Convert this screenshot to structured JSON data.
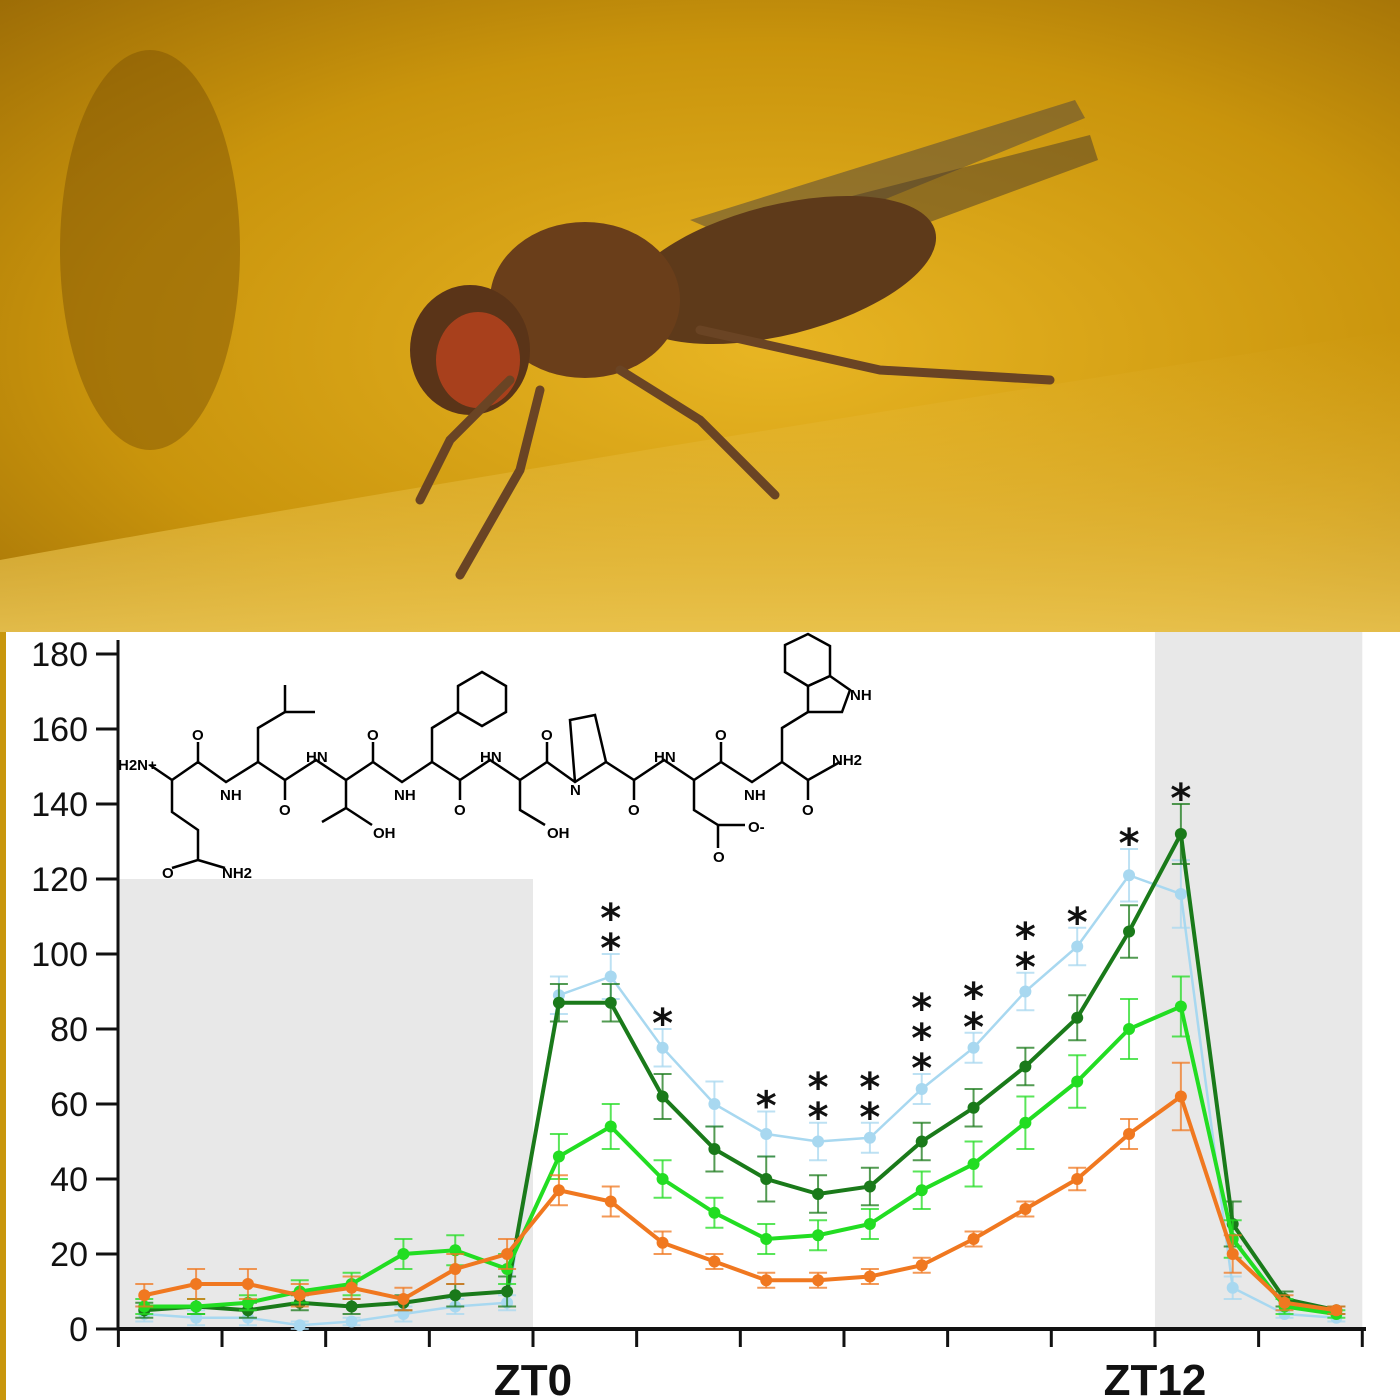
{
  "photo": {
    "subject": "fruit fly on surface",
    "background_color": "#c8960c"
  },
  "structure": {
    "atom_labels": [
      "H2N+",
      "O",
      "NH",
      "O",
      "HN",
      "O",
      "NH",
      "O",
      "HN",
      "O",
      "N",
      "O",
      "HN",
      "O",
      "NH",
      "NH2",
      "O",
      "OH",
      "OH",
      "O-",
      "O",
      "O",
      "NH2",
      "NH"
    ]
  },
  "chart_data": {
    "type": "line",
    "title": "",
    "xlabel": "",
    "ylabel": "",
    "x_unit": "hours relative to ZT0",
    "x": [
      -7.5,
      -6.5,
      -5.5,
      -4.5,
      -3.5,
      -2.5,
      -1.5,
      -0.5,
      0.5,
      1.5,
      2.5,
      3.5,
      4.5,
      5.5,
      6.5,
      7.5,
      8.5,
      9.5,
      10.5,
      11.5,
      12.5,
      13.5,
      14.5,
      15.5
    ],
    "xlim": [
      -8,
      16
    ],
    "ylim": [
      0,
      180
    ],
    "y_ticks": [
      "0",
      "20",
      "40",
      "60",
      "80",
      "100",
      "120",
      "140",
      "160",
      "180"
    ],
    "y_tick_values": [
      0,
      20,
      40,
      60,
      80,
      100,
      120,
      140,
      160,
      180
    ],
    "x_tick_values": [
      -8,
      -6,
      -4,
      -2,
      0,
      2,
      4,
      6,
      8,
      10,
      12,
      14,
      16
    ],
    "x_tick_labels": [
      {
        "at": 0,
        "text": "ZT0"
      },
      {
        "at": 12,
        "text": "ZT12"
      }
    ],
    "shaded_dark_periods": [
      [
        -8,
        0
      ],
      [
        12,
        16
      ]
    ],
    "grid": false,
    "legend": "none",
    "series": [
      {
        "color": "#a8d8f0",
        "values": [
          4,
          3,
          3,
          1,
          2,
          4,
          6,
          7,
          89,
          94,
          75,
          60,
          52,
          50,
          51,
          64,
          75,
          90,
          102,
          121,
          116,
          11,
          4,
          3
        ],
        "errors": [
          2,
          2,
          2,
          1,
          1,
          2,
          2,
          2,
          5,
          6,
          5,
          6,
          6,
          5,
          4,
          4,
          4,
          5,
          5,
          7,
          9,
          3,
          1,
          1
        ]
      },
      {
        "color": "#1a7a1a",
        "values": [
          5,
          6,
          5,
          7,
          6,
          7,
          9,
          10,
          87,
          87,
          62,
          48,
          40,
          36,
          38,
          50,
          59,
          70,
          83,
          106,
          132,
          28,
          8,
          5
        ],
        "errors": [
          2,
          2,
          2,
          2,
          2,
          2,
          3,
          4,
          5,
          5,
          6,
          6,
          6,
          5,
          5,
          5,
          5,
          5,
          6,
          7,
          8,
          6,
          2,
          1
        ]
      },
      {
        "color": "#22dd22",
        "values": [
          6,
          6,
          7,
          10,
          12,
          20,
          21,
          16,
          46,
          54,
          40,
          31,
          24,
          25,
          28,
          37,
          44,
          55,
          66,
          80,
          86,
          24,
          6,
          4
        ],
        "errors": [
          2,
          2,
          2,
          3,
          3,
          4,
          4,
          4,
          6,
          6,
          5,
          4,
          4,
          4,
          4,
          5,
          6,
          7,
          7,
          8,
          8,
          5,
          2,
          1
        ]
      },
      {
        "color": "#f07820",
        "values": [
          9,
          12,
          12,
          9,
          11,
          8,
          16,
          20,
          37,
          34,
          23,
          18,
          13,
          13,
          14,
          17,
          24,
          32,
          40,
          52,
          62,
          20,
          7,
          5
        ],
        "errors": [
          3,
          4,
          4,
          3,
          3,
          3,
          4,
          4,
          4,
          4,
          3,
          2,
          2,
          2,
          2,
          2,
          2,
          2,
          3,
          4,
          9,
          5,
          2,
          1
        ]
      }
    ],
    "annotations": [
      {
        "x": 1.5,
        "text": "**"
      },
      {
        "x": 2.5,
        "text": "*"
      },
      {
        "x": 4.5,
        "text": "*"
      },
      {
        "x": 5.5,
        "text": "**"
      },
      {
        "x": 6.5,
        "text": "**"
      },
      {
        "x": 7.5,
        "text": "***"
      },
      {
        "x": 8.5,
        "text": "**"
      },
      {
        "x": 9.5,
        "text": "**"
      },
      {
        "x": 10.5,
        "text": "*"
      },
      {
        "x": 11.5,
        "text": "*"
      },
      {
        "x": 12.5,
        "text": "*"
      }
    ]
  }
}
